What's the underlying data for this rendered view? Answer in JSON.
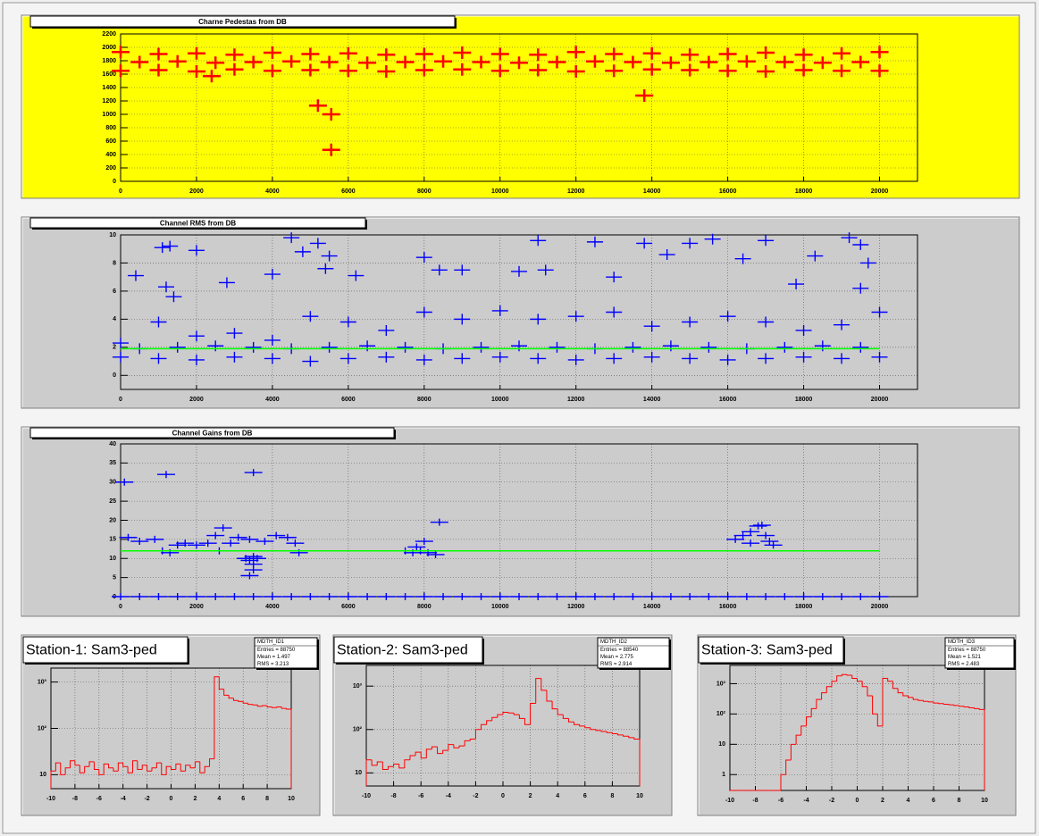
{
  "chart_data": [
    {
      "type": "scatter",
      "title": "Charne Pedestas from DB",
      "color": "#ff0000",
      "x": [
        0,
        1000,
        2000,
        3000,
        4000,
        5000,
        6000,
        7000,
        8000,
        9000,
        10000,
        11000,
        12000,
        13000,
        14000,
        15000,
        16000,
        17000,
        18000,
        19000,
        20000,
        500,
        1500,
        2500,
        3500,
        4500,
        5500,
        6500,
        7500,
        8500,
        9500,
        10500,
        11500,
        12500,
        13500,
        14500,
        15500,
        16500,
        17500,
        18500,
        19500,
        0,
        1000,
        2000,
        3000,
        4000,
        5000,
        6000,
        7000,
        8000,
        9000,
        10000,
        11000,
        12000,
        13000,
        14000,
        15000,
        16000,
        17000,
        18000,
        19000,
        20000,
        2400,
        5200,
        5550,
        5550,
        13800
      ],
      "values": [
        1930,
        1900,
        1910,
        1890,
        1920,
        1900,
        1910,
        1890,
        1900,
        1920,
        1900,
        1890,
        1930,
        1900,
        1910,
        1890,
        1900,
        1920,
        1890,
        1910,
        1930,
        1780,
        1790,
        1770,
        1780,
        1790,
        1780,
        1770,
        1780,
        1790,
        1780,
        1770,
        1780,
        1790,
        1780,
        1770,
        1780,
        1790,
        1780,
        1770,
        1780,
        1650,
        1660,
        1640,
        1670,
        1650,
        1660,
        1650,
        1640,
        1660,
        1670,
        1650,
        1660,
        1640,
        1650,
        1670,
        1660,
        1650,
        1640,
        1660,
        1650,
        1650,
        1570,
        1130,
        1000,
        470,
        1280
      ],
      "xlim": [
        0,
        21000
      ],
      "ylim": [
        0,
        2200
      ],
      "xticks": [
        0,
        2000,
        4000,
        6000,
        8000,
        10000,
        12000,
        14000,
        16000,
        18000,
        20000
      ],
      "yticks": [
        0,
        200,
        400,
        600,
        800,
        1000,
        1200,
        1400,
        1600,
        1800,
        2000,
        2200
      ],
      "grid": true
    },
    {
      "type": "scatter",
      "title": "Channel RMS from DB",
      "color": "#0000ff",
      "x": [
        0,
        1000,
        2000,
        3000,
        4000,
        5000,
        6000,
        7000,
        8000,
        9000,
        10000,
        11000,
        12000,
        13000,
        14000,
        15000,
        16000,
        17000,
        18000,
        19000,
        20000,
        500,
        1500,
        2500,
        3500,
        4500,
        5500,
        6500,
        7500,
        8500,
        9500,
        10500,
        11500,
        12500,
        13500,
        14500,
        15500,
        16500,
        17500,
        18500,
        19500,
        0,
        1000,
        2000,
        3000,
        4000,
        5000,
        6000,
        7000,
        8000,
        9000,
        10000,
        11000,
        12000,
        13000,
        14000,
        15000,
        16000,
        17000,
        18000,
        19000,
        20000,
        400,
        1100,
        1300,
        2000,
        1200,
        1400,
        2800,
        4000,
        4500,
        4800,
        5200,
        5500,
        5400,
        6200,
        8000,
        8400,
        9000,
        10500,
        11000,
        12500,
        13000,
        13800,
        15000,
        15600,
        16400,
        17000,
        17800,
        18300,
        19200,
        19500,
        19700,
        19500,
        11200,
        14400
      ],
      "values": [
        1.3,
        1.2,
        1.1,
        1.3,
        1.2,
        1.0,
        1.2,
        1.3,
        1.1,
        1.2,
        1.3,
        1.2,
        1.1,
        1.2,
        1.3,
        1.2,
        1.1,
        1.2,
        1.3,
        1.2,
        1.3,
        1.9,
        2.0,
        2.1,
        2.0,
        1.9,
        2.0,
        2.1,
        2.0,
        1.9,
        2.0,
        2.1,
        2.0,
        1.9,
        2.0,
        2.1,
        2.0,
        1.9,
        2.0,
        2.1,
        2.0,
        2.3,
        3.8,
        2.8,
        3.0,
        2.5,
        4.2,
        3.8,
        3.2,
        4.5,
        4.0,
        4.6,
        4.0,
        4.2,
        4.5,
        3.5,
        3.8,
        4.2,
        3.8,
        3.2,
        3.6,
        4.5,
        7.1,
        9.1,
        9.2,
        8.9,
        6.3,
        5.6,
        6.6,
        7.2,
        9.8,
        8.8,
        9.4,
        8.5,
        7.6,
        7.1,
        8.4,
        7.5,
        7.5,
        7.4,
        9.6,
        9.5,
        7.0,
        9.4,
        9.4,
        9.7,
        8.3,
        9.6,
        6.5,
        8.5,
        9.8,
        9.3,
        8.0,
        6.2,
        7.5,
        8.6
      ],
      "xlim": [
        0,
        21000
      ],
      "ylim": [
        -1,
        10
      ],
      "xticks": [
        0,
        2000,
        4000,
        6000,
        8000,
        10000,
        12000,
        14000,
        16000,
        18000,
        20000
      ],
      "yticks": [
        0,
        2,
        4,
        6,
        8,
        10
      ],
      "grid": true,
      "reference_line": {
        "value": 1.9,
        "x": [
          0,
          20000
        ],
        "color": "#00ff00"
      }
    },
    {
      "type": "scatter",
      "title": "Channel Gains from DB",
      "color": "#0000ff",
      "x": [
        0,
        1000,
        2000,
        3000,
        4000,
        5000,
        6000,
        7000,
        8000,
        9000,
        10000,
        11000,
        12000,
        13000,
        14000,
        15000,
        16000,
        17000,
        18000,
        19000,
        20000,
        500,
        1500,
        2500,
        3500,
        4500,
        5500,
        6500,
        7500,
        8500,
        9500,
        10500,
        11500,
        12500,
        13500,
        14500,
        15500,
        16500,
        17500,
        18500,
        19500,
        3300,
        3400,
        3500,
        3600,
        3500,
        3400,
        3500,
        7500,
        7700,
        7900,
        8100,
        8300,
        8000,
        8400,
        7800,
        16200,
        16400,
        16600,
        16800,
        17000,
        17200,
        16900,
        17100,
        16600,
        100,
        200,
        500,
        900,
        1100,
        1200,
        1300,
        1500,
        1700,
        2000,
        2300,
        2500,
        2700,
        2600,
        2900,
        3100,
        3400,
        3500,
        3800,
        4100,
        4400,
        4600,
        4700
      ],
      "values": [
        0,
        0,
        0,
        0,
        0,
        0,
        0,
        0,
        0,
        0,
        0,
        0,
        0,
        0,
        0,
        0,
        0,
        0,
        0,
        0,
        0,
        0,
        0,
        0,
        0,
        0,
        0,
        0,
        0,
        0,
        0,
        0,
        0,
        0,
        0,
        0,
        0,
        0,
        0,
        0,
        0,
        10,
        9.5,
        10.5,
        10,
        7,
        5.5,
        8.5,
        12,
        11.5,
        12,
        11.5,
        11,
        14.5,
        19.5,
        13,
        15,
        16,
        17,
        18.5,
        16,
        13.5,
        18.7,
        14.5,
        14,
        30,
        15.5,
        14.5,
        15,
        12,
        32,
        11.5,
        13.5,
        14,
        13.5,
        14,
        16,
        18,
        12,
        14,
        15.5,
        15,
        32.5,
        14.5,
        16,
        15.5,
        14,
        11.5
      ],
      "xlim": [
        0,
        21000
      ],
      "ylim": [
        0,
        40
      ],
      "xticks": [
        0,
        2000,
        4000,
        6000,
        8000,
        10000,
        12000,
        14000,
        16000,
        18000,
        20000
      ],
      "yticks": [
        0,
        5,
        10,
        15,
        20,
        25,
        30,
        35,
        40
      ],
      "grid": true,
      "reference_line": {
        "value": 12,
        "x": [
          0,
          20000
        ],
        "color": "#00ff00"
      }
    },
    {
      "type": "histogram",
      "title": "Station-1: Sam3-ped",
      "color": "#ff0000",
      "stats": {
        "title": "MDTH_ID1",
        "lines": [
          "Entries = 88750",
          "Mean = 1.497",
          "RMS = 3.213"
        ]
      },
      "bins": [
        -10,
        -9.6,
        -9.2,
        -8.8,
        -8.4,
        -8,
        -7.6,
        -7.2,
        -6.8,
        -6.4,
        -6,
        -5.6,
        -5.2,
        -4.8,
        -4.4,
        -4,
        -3.6,
        -3.2,
        -2.8,
        -2.4,
        -2,
        -1.6,
        -1.2,
        -0.8,
        -0.4,
        0,
        0.4,
        0.8,
        1.2,
        1.6,
        2,
        2.4,
        2.8,
        3.2,
        3.6,
        4,
        4.4,
        4.8,
        5.2,
        5.6,
        6,
        6.4,
        6.8,
        7.2,
        7.6,
        8,
        8.4,
        8.8,
        9.2,
        9.6,
        10
      ],
      "values": [
        12,
        18,
        10,
        14,
        20,
        16,
        11,
        15,
        19,
        13,
        10,
        17,
        14,
        12,
        18,
        15,
        11,
        20,
        13,
        16,
        12,
        14,
        18,
        10,
        15,
        13,
        17,
        12,
        16,
        14,
        19,
        11,
        15,
        22,
        1300,
        700,
        520,
        450,
        400,
        380,
        350,
        330,
        320,
        300,
        310,
        290,
        280,
        290,
        270,
        260
      ],
      "xlim": [
        -10,
        10
      ],
      "ylim": [
        5,
        2000
      ],
      "log_y": true,
      "grid": true,
      "xticks": [
        -10,
        -8,
        -6,
        -4,
        -2,
        0,
        2,
        4,
        6,
        8,
        10
      ],
      "yticks": [
        10,
        {
          "value": 100,
          "label": "10²"
        },
        {
          "value": 1000,
          "label": "10³"
        }
      ]
    },
    {
      "type": "histogram",
      "title": "Station-2: Sam3-ped",
      "color": "#ff0000",
      "stats": {
        "title": "MDTH_ID2",
        "lines": [
          "Entries = 88540",
          "Mean = 2.775",
          "RMS = 2.914"
        ]
      },
      "bins": [
        -10,
        -9.6,
        -9.2,
        -8.8,
        -8.4,
        -8,
        -7.6,
        -7.2,
        -6.8,
        -6.4,
        -6,
        -5.6,
        -5.2,
        -4.8,
        -4.4,
        -4,
        -3.6,
        -3.2,
        -2.8,
        -2.4,
        -2,
        -1.6,
        -1.2,
        -0.8,
        -0.4,
        0,
        0.4,
        0.8,
        1.2,
        1.6,
        2,
        2.4,
        2.8,
        3.2,
        3.6,
        4,
        4.4,
        4.8,
        5.2,
        5.6,
        6,
        6.4,
        6.8,
        7.2,
        7.6,
        8,
        8.4,
        8.8,
        9.2,
        9.6,
        10
      ],
      "values": [
        20,
        15,
        18,
        12,
        14,
        16,
        13,
        20,
        25,
        30,
        22,
        35,
        40,
        28,
        33,
        45,
        38,
        42,
        55,
        60,
        100,
        130,
        160,
        190,
        220,
        250,
        240,
        220,
        180,
        130,
        400,
        1500,
        800,
        450,
        300,
        220,
        180,
        150,
        130,
        120,
        110,
        100,
        95,
        90,
        85,
        80,
        75,
        70,
        65,
        60
      ],
      "xlim": [
        -10,
        10
      ],
      "ylim": [
        5,
        3000
      ],
      "log_y": true,
      "grid": true,
      "xticks": [
        -10,
        -8,
        -6,
        -4,
        -2,
        0,
        2,
        4,
        6,
        8,
        10
      ],
      "yticks": [
        10,
        {
          "value": 100,
          "label": "10²"
        },
        {
          "value": 1000,
          "label": "10³"
        }
      ]
    },
    {
      "type": "histogram",
      "title": "Station-3: Sam3-ped",
      "color": "#ff0000",
      "stats": {
        "title": "MDTH_ID3",
        "lines": [
          "Entries = 88750",
          "Mean = 1.521",
          "RMS = 2.483"
        ]
      },
      "bins": [
        -10,
        -9.6,
        -9.2,
        -8.8,
        -8.4,
        -8,
        -7.6,
        -7.2,
        -6.8,
        -6.4,
        -6,
        -5.6,
        -5.2,
        -4.8,
        -4.4,
        -4,
        -3.6,
        -3.2,
        -2.8,
        -2.4,
        -2,
        -1.6,
        -1.2,
        -0.8,
        -0.4,
        0,
        0.4,
        0.8,
        1.2,
        1.6,
        2,
        2.4,
        2.8,
        3.2,
        3.6,
        4,
        4.4,
        4.8,
        5.2,
        5.6,
        6,
        6.4,
        6.8,
        7.2,
        7.6,
        8,
        8.4,
        8.8,
        9.2,
        9.6,
        10
      ],
      "values": [
        0,
        0,
        0,
        0,
        0,
        0,
        0,
        0,
        0,
        0,
        1,
        3,
        10,
        20,
        40,
        80,
        150,
        300,
        500,
        800,
        1200,
        1800,
        2000,
        1900,
        1500,
        1200,
        800,
        400,
        100,
        40,
        1500,
        1200,
        700,
        500,
        400,
        350,
        300,
        280,
        260,
        250,
        230,
        220,
        210,
        200,
        190,
        180,
        170,
        160,
        150,
        140
      ],
      "xlim": [
        -10,
        10
      ],
      "ylim": [
        0.3,
        4000
      ],
      "log_y": true,
      "grid": true,
      "xticks": [
        -10,
        -8,
        -6,
        -4,
        -2,
        0,
        2,
        4,
        6,
        8,
        10
      ],
      "yticks": [
        1,
        10,
        {
          "value": 100,
          "label": "10²"
        },
        {
          "value": 1000,
          "label": "10³"
        }
      ]
    }
  ]
}
